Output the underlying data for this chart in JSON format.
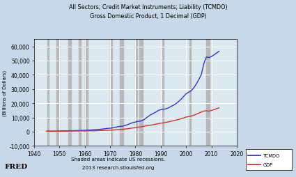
{
  "title_line1": "All Sectors; Credit Market Instruments; Liability (TCMDO)",
  "title_line2": "Gross Domestic Product, 1 Decimal (GDP)",
  "ylabel": "(Billions of Dollars)",
  "xlim": [
    1940,
    2020
  ],
  "ylim": [
    -10000,
    65000
  ],
  "yticks": [
    -10000,
    0,
    10000,
    20000,
    30000,
    40000,
    50000,
    60000
  ],
  "xticks": [
    1940,
    1950,
    1960,
    1970,
    1980,
    1990,
    2000,
    2010,
    2020
  ],
  "bg_color": "#c8d8e8",
  "plot_bg_color": "#dce8f0",
  "grid_color": "#ffffff",
  "recession_color": "#b8b8b8",
  "tcmdo_color": "#3333cc",
  "gdp_color": "#cc3333",
  "footer_text1": "Shaded areas indicate US recessions.",
  "footer_text2": "2013 research.stlouisfed.org",
  "recessions": [
    [
      1945.3,
      1945.9
    ],
    [
      1948.8,
      1949.9
    ],
    [
      1953.6,
      1954.5
    ],
    [
      1957.6,
      1958.4
    ],
    [
      1960.2,
      1961.1
    ],
    [
      1969.9,
      1970.9
    ],
    [
      1973.9,
      1975.1
    ],
    [
      1980.0,
      1980.6
    ],
    [
      1981.6,
      1982.9
    ],
    [
      1990.6,
      1991.2
    ],
    [
      2001.2,
      2001.9
    ],
    [
      2007.9,
      2009.4
    ]
  ],
  "tcmdo_years": [
    1945,
    1946,
    1947,
    1948,
    1949,
    1950,
    1951,
    1952,
    1953,
    1954,
    1955,
    1956,
    1957,
    1958,
    1959,
    1960,
    1961,
    1962,
    1963,
    1964,
    1965,
    1966,
    1967,
    1968,
    1969,
    1970,
    1971,
    1972,
    1973,
    1974,
    1975,
    1976,
    1977,
    1978,
    1979,
    1980,
    1981,
    1982,
    1983,
    1984,
    1985,
    1986,
    1987,
    1988,
    1989,
    1990,
    1991,
    1992,
    1993,
    1994,
    1995,
    1996,
    1997,
    1998,
    1999,
    2000,
    2001,
    2002,
    2003,
    2004,
    2005,
    2006,
    2007,
    2008,
    2009,
    2010,
    2011,
    2012,
    2013
  ],
  "tcmdo_values": [
    404,
    394,
    399,
    420,
    426,
    486,
    524,
    556,
    592,
    614,
    699,
    744,
    793,
    863,
    962,
    1003,
    1063,
    1162,
    1267,
    1388,
    1529,
    1680,
    1836,
    2100,
    2311,
    2431,
    2719,
    3062,
    3467,
    3748,
    3927,
    4377,
    5014,
    5765,
    6357,
    6788,
    7217,
    7499,
    8016,
    9293,
    10649,
    11894,
    12786,
    13792,
    14879,
    15566,
    15767,
    16048,
    16722,
    17726,
    18600,
    19737,
    21137,
    22858,
    24773,
    26659,
    27800,
    28795,
    30786,
    33468,
    36632,
    40220,
    47975,
    52541,
    52190,
    52890,
    54021,
    55339,
    56560
  ],
  "gdp_years": [
    1945,
    1946,
    1947,
    1948,
    1949,
    1950,
    1951,
    1952,
    1953,
    1954,
    1955,
    1956,
    1957,
    1958,
    1959,
    1960,
    1961,
    1962,
    1963,
    1964,
    1965,
    1966,
    1967,
    1968,
    1969,
    1970,
    1971,
    1972,
    1973,
    1974,
    1975,
    1976,
    1977,
    1978,
    1979,
    1980,
    1981,
    1982,
    1983,
    1984,
    1985,
    1986,
    1987,
    1988,
    1989,
    1990,
    1991,
    1992,
    1993,
    1994,
    1995,
    1996,
    1997,
    1998,
    1999,
    2000,
    2001,
    2002,
    2003,
    2004,
    2005,
    2006,
    2007,
    2008,
    2009,
    2010,
    2011,
    2012,
    2013
  ],
  "gdp_values": [
    228,
    224,
    245,
    270,
    268,
    300,
    348,
    368,
    384,
    381,
    426,
    451,
    483,
    505,
    529,
    543,
    563,
    605,
    638,
    685,
    743,
    815,
    862,
    943,
    1019,
    1075,
    1168,
    1282,
    1429,
    1549,
    1689,
    1878,
    2086,
    2352,
    2631,
    2862,
    3211,
    3345,
    3638,
    4040,
    4347,
    4590,
    4870,
    5253,
    5657,
    5979,
    6174,
    6539,
    6879,
    7342,
    7664,
    8100,
    8609,
    9089,
    9661,
    10290,
    10625,
    10978,
    11511,
    12275,
    13094,
    13856,
    14478,
    14719,
    14419,
    14964,
    15518,
    16163,
    16768
  ]
}
